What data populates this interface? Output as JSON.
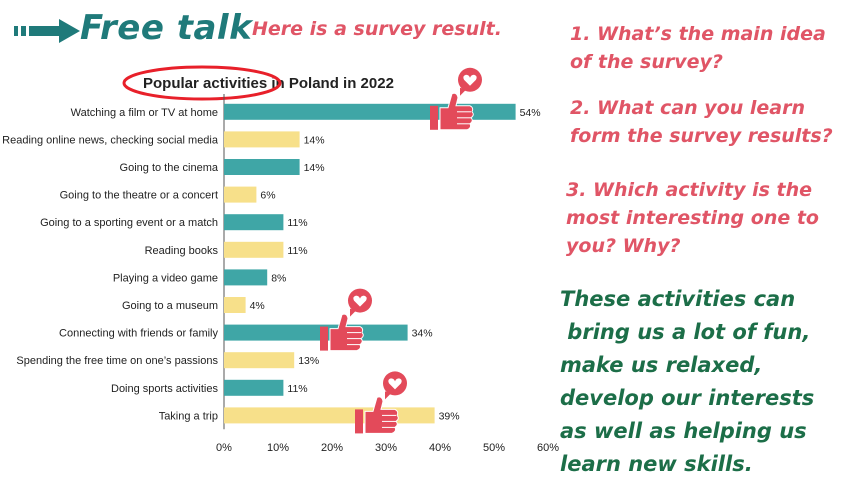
{
  "header": {
    "title": "Free talk",
    "subtitle": "Here is a survey result."
  },
  "questions": [
    "1. What’s the main idea of the survey?",
    "2. What can you learn form the survey results?",
    "3. Which activity is the most interesting one to you? Why?"
  ],
  "summary_lines": [
    "These activities can",
    " bring us a lot of fun,",
    "make us relaxed,",
    "develop our interests",
    "as well as helping us",
    "learn new skills."
  ],
  "colors": {
    "teal_bar": "#3fa6a6",
    "yellow_bar": "#f7e08a",
    "title_teal": "#1f7a7a",
    "pink": "#e05566",
    "summary_green": "#1c6e48",
    "highlight_ellipse": "#e8202a",
    "thumb": "#e34a5a"
  },
  "chart_data": {
    "type": "bar",
    "orientation": "horizontal",
    "title_highlight": "Popular activities",
    "title_rest": " in Poland in 2022",
    "categories": [
      "Watching a film or TV at home",
      "Reading online news, checking social media",
      "Going to the cinema",
      "Going to the theatre or a concert",
      "Going to a sporting event or a match",
      "Reading books",
      "Playing a video game",
      "Going to a museum",
      "Connecting with friends or family",
      "Spending the free time on one’s passions",
      "Doing sports activities",
      "Taking a trip"
    ],
    "values": [
      54,
      14,
      14,
      6,
      11,
      11,
      8,
      4,
      34,
      13,
      11,
      39
    ],
    "value_labels": [
      "54%",
      "14%",
      "14%",
      "6%",
      "11%",
      "11%",
      "8%",
      "4%",
      "34%",
      "13%",
      "11%",
      "39%"
    ],
    "bar_colors": [
      "teal",
      "yellow",
      "teal",
      "yellow",
      "teal",
      "yellow",
      "teal",
      "yellow",
      "teal",
      "yellow",
      "teal",
      "yellow"
    ],
    "xlim": [
      0,
      60
    ],
    "x_ticks": [
      "0%",
      "10%",
      "20%",
      "30%",
      "40%",
      "50%",
      "60%"
    ],
    "grid": false,
    "thumbs_up_on": [
      0,
      8,
      11
    ]
  }
}
